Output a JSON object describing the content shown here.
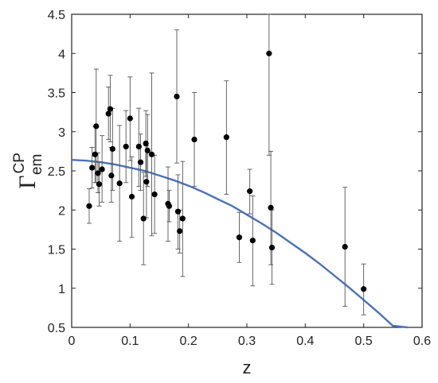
{
  "chart_data": {
    "type": "scatter",
    "xlabel": "z",
    "ylabel": {
      "main": "Γ",
      "superscript": "CP",
      "subscript": "em"
    },
    "xlim": [
      0,
      0.6
    ],
    "ylim": [
      0.5,
      4.5
    ],
    "xticks": [
      "0",
      "0.1",
      "0.2",
      "0.3",
      "0.4",
      "0.5",
      "0.6"
    ],
    "yticks": [
      "0.5",
      "1",
      "1.5",
      "2",
      "2.5",
      "3",
      "3.5",
      "4",
      "4.5"
    ],
    "grid": false,
    "colors": {
      "points": "#000000",
      "errorbars": "#555555",
      "curve": "#4a72b8"
    },
    "points": [
      {
        "x": 0.03,
        "y": 2.05,
        "lo": 1.83,
        "hi": 2.27
      },
      {
        "x": 0.035,
        "y": 2.54,
        "lo": 2.28,
        "hi": 2.8
      },
      {
        "x": 0.04,
        "y": 2.71,
        "lo": 2.35,
        "hi": 3.07
      },
      {
        "x": 0.042,
        "y": 3.07,
        "lo": 2.35,
        "hi": 3.8
      },
      {
        "x": 0.045,
        "y": 2.47,
        "lo": 2.22,
        "hi": 2.73
      },
      {
        "x": 0.047,
        "y": 2.33,
        "lo": 2.05,
        "hi": 2.61
      },
      {
        "x": 0.052,
        "y": 2.52,
        "lo": 2.1,
        "hi": 2.95
      },
      {
        "x": 0.063,
        "y": 3.23,
        "lo": 2.9,
        "hi": 3.57
      },
      {
        "x": 0.066,
        "y": 3.29,
        "lo": 2.87,
        "hi": 3.72
      },
      {
        "x": 0.068,
        "y": 2.44,
        "lo": 2.1,
        "hi": 2.8
      },
      {
        "x": 0.07,
        "y": 2.78,
        "lo": 2.25,
        "hi": 3.3
      },
      {
        "x": 0.082,
        "y": 2.34,
        "lo": 1.6,
        "hi": 3.08
      },
      {
        "x": 0.093,
        "y": 2.81,
        "lo": 2.35,
        "hi": 3.27
      },
      {
        "x": 0.1,
        "y": 3.17,
        "lo": 2.63,
        "hi": 3.7
      },
      {
        "x": 0.103,
        "y": 2.17,
        "lo": 1.65,
        "hi": 2.68
      },
      {
        "x": 0.115,
        "y": 2.81,
        "lo": 2.3,
        "hi": 3.3
      },
      {
        "x": 0.118,
        "y": 2.61,
        "lo": 2.25,
        "hi": 2.97
      },
      {
        "x": 0.123,
        "y": 1.89,
        "lo": 1.3,
        "hi": 2.48
      },
      {
        "x": 0.127,
        "y": 2.85,
        "lo": 2.43,
        "hi": 3.27
      },
      {
        "x": 0.128,
        "y": 2.36,
        "lo": 1.9,
        "hi": 2.82
      },
      {
        "x": 0.13,
        "y": 2.76,
        "lo": 2.3,
        "hi": 3.22
      },
      {
        "x": 0.137,
        "y": 2.71,
        "lo": 1.67,
        "hi": 3.75
      },
      {
        "x": 0.142,
        "y": 2.2,
        "lo": 1.7,
        "hi": 2.7
      },
      {
        "x": 0.165,
        "y": 2.08,
        "lo": 1.6,
        "hi": 2.55
      },
      {
        "x": 0.167,
        "y": 2.05,
        "lo": 1.85,
        "hi": 2.25
      },
      {
        "x": 0.18,
        "y": 3.45,
        "lo": 2.6,
        "hi": 4.3
      },
      {
        "x": 0.182,
        "y": 1.98,
        "lo": 1.5,
        "hi": 2.45
      },
      {
        "x": 0.185,
        "y": 1.73,
        "lo": 1.45,
        "hi": 2.0
      },
      {
        "x": 0.19,
        "y": 1.89,
        "lo": 1.15,
        "hi": 2.62
      },
      {
        "x": 0.21,
        "y": 2.9,
        "lo": 2.3,
        "hi": 3.5
      },
      {
        "x": 0.265,
        "y": 2.93,
        "lo": 2.2,
        "hi": 3.65
      },
      {
        "x": 0.287,
        "y": 1.65,
        "lo": 1.33,
        "hi": 1.97
      },
      {
        "x": 0.305,
        "y": 2.24,
        "lo": 1.95,
        "hi": 2.52
      },
      {
        "x": 0.31,
        "y": 1.61,
        "lo": 1.03,
        "hi": 2.18
      },
      {
        "x": 0.338,
        "y": 4.0,
        "lo": 2.7,
        "hi": 4.5
      },
      {
        "x": 0.341,
        "y": 2.03,
        "lo": 1.3,
        "hi": 2.75
      },
      {
        "x": 0.343,
        "y": 1.52,
        "lo": 1.05,
        "hi": 2.0
      },
      {
        "x": 0.468,
        "y": 1.53,
        "lo": 0.77,
        "hi": 2.29
      },
      {
        "x": 0.5,
        "y": 0.99,
        "lo": 0.66,
        "hi": 1.31
      }
    ],
    "curve": {
      "x": [
        0,
        0.025,
        0.05,
        0.075,
        0.1,
        0.125,
        0.15,
        0.175,
        0.2,
        0.225,
        0.25,
        0.275,
        0.3,
        0.325,
        0.35,
        0.375,
        0.4,
        0.425,
        0.45,
        0.475,
        0.5,
        0.525,
        0.55,
        0.575
      ],
      "y": [
        2.64,
        2.63,
        2.61,
        2.58,
        2.54,
        2.5,
        2.44,
        2.38,
        2.31,
        2.23,
        2.14,
        2.05,
        1.94,
        1.83,
        1.71,
        1.58,
        1.45,
        1.31,
        1.16,
        1.01,
        0.85,
        0.69,
        0.52,
        0.5
      ]
    }
  }
}
